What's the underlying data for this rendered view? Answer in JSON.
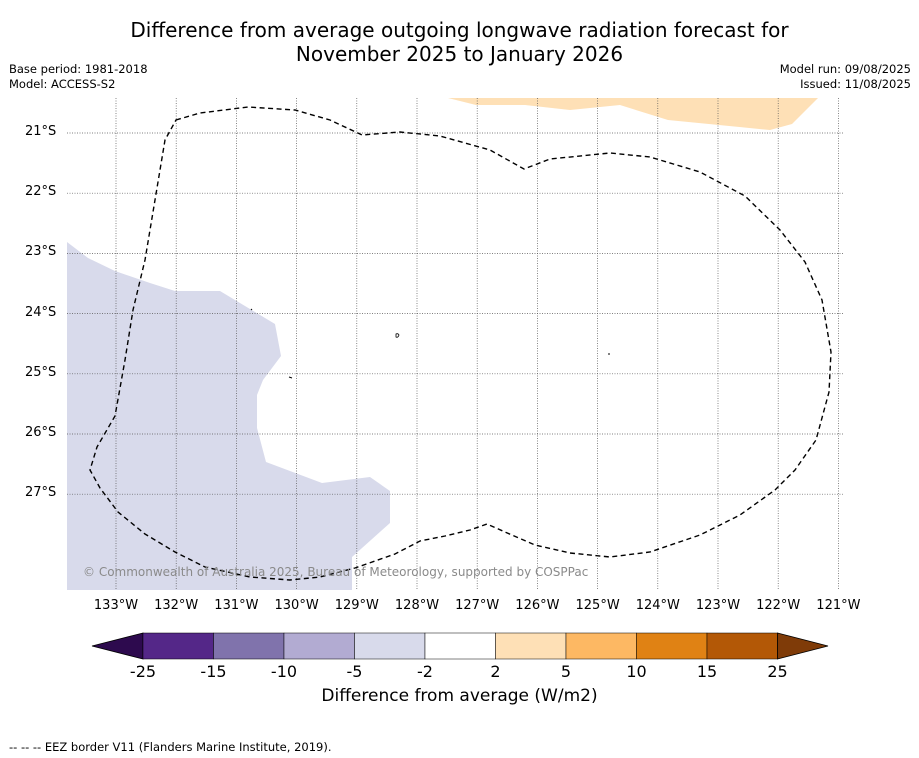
{
  "title_line1": "Difference from average outgoing longwave radiation forecast for",
  "title_line2": "November 2025 to January 2026",
  "base_period": "Base period: 1981-2018",
  "model": "Model: ACCESS-S2",
  "model_run": "Model run: 09/08/2025",
  "issued": "Issued: 11/08/2025",
  "lat_labels": [
    "21°S",
    "22°S",
    "23°S",
    "24°S",
    "25°S",
    "26°S",
    "27°S"
  ],
  "lon_labels": [
    "133°W",
    "132°W",
    "131°W",
    "130°W",
    "129°W",
    "128°W",
    "127°W",
    "126°W",
    "125°W",
    "124°W",
    "123°W",
    "122°W",
    "121°W"
  ],
  "copyright": "© Commonwealth of Australia 2025, Bureau of Meteorology, supported by COSPPac",
  "colorbar": {
    "ticks": [
      "-25",
      "-15",
      "-10",
      "-5",
      "-2",
      "2",
      "5",
      "10",
      "15",
      "25"
    ],
    "colors": [
      "#2d0a4e",
      "#542788",
      "#8073ac",
      "#b2abd2",
      "#d8daeb",
      "#ffffff",
      "#fee0b6",
      "#fdb863",
      "#e08214",
      "#b35806",
      "#7f3b08"
    ],
    "label": "Difference from average (W/m2)"
  },
  "map_colors": {
    "negative_shade": "#d8daeb",
    "positive_shade": "#fee0b6"
  },
  "footnote": "--  --  -- EEZ border V11 (Flanders Marine Institute, 2019)."
}
